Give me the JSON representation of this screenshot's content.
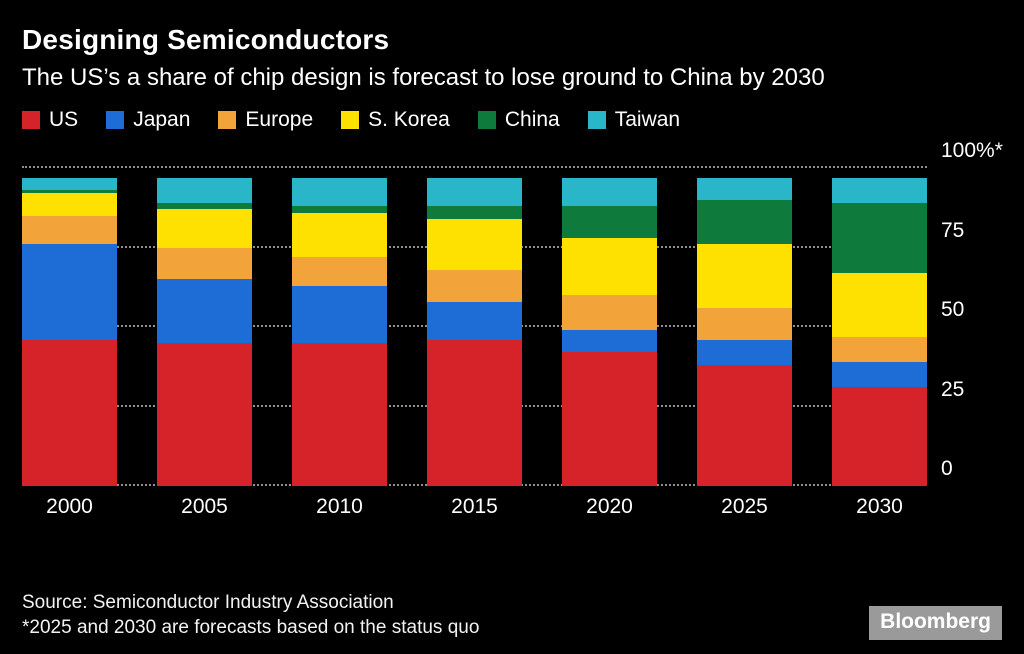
{
  "header": {
    "title": "Designing Semiconductors",
    "subtitle": "The US’s a share of chip design is forecast to lose ground to China by 2030"
  },
  "footer": {
    "source": "Source: Semiconductor Industry Association",
    "note": "*2025 and 2030 are forecasts based on the status quo",
    "brand": "Bloomberg"
  },
  "chart_data": {
    "type": "bar",
    "stacked": true,
    "title": "Designing Semiconductors",
    "subtitle": "The US’s a share of chip design is forecast to lose ground to China by 2030",
    "categories": [
      "2000",
      "2005",
      "2010",
      "2015",
      "2020",
      "2025",
      "2030"
    ],
    "series": [
      {
        "name": "US",
        "color": "#d6232a",
        "values": [
          46,
          45,
          45,
          46,
          42,
          38,
          31
        ]
      },
      {
        "name": "Japan",
        "color": "#1e6cd5",
        "values": [
          30,
          20,
          18,
          12,
          7,
          8,
          8
        ]
      },
      {
        "name": "Europe",
        "color": "#f2a33a",
        "values": [
          9,
          10,
          9,
          10,
          11,
          10,
          8
        ]
      },
      {
        "name": "S. Korea",
        "color": "#ffe100",
        "values": [
          7,
          12,
          14,
          16,
          18,
          20,
          20
        ]
      },
      {
        "name": "China",
        "color": "#0e7b3d",
        "values": [
          1,
          2,
          2,
          4,
          10,
          14,
          22
        ]
      },
      {
        "name": "Taiwan",
        "color": "#29b6c9",
        "values": [
          4,
          8,
          9,
          9,
          9,
          7,
          8
        ]
      }
    ],
    "ylabel_ticks": [
      "0",
      "25",
      "50",
      "75",
      "100%*"
    ],
    "ytick_values": [
      0,
      25,
      50,
      75,
      100
    ],
    "ylim": [
      0,
      100
    ],
    "xlabel": "",
    "ylabel": "",
    "legend_position": "top",
    "grid": "dotted-horizontal"
  }
}
